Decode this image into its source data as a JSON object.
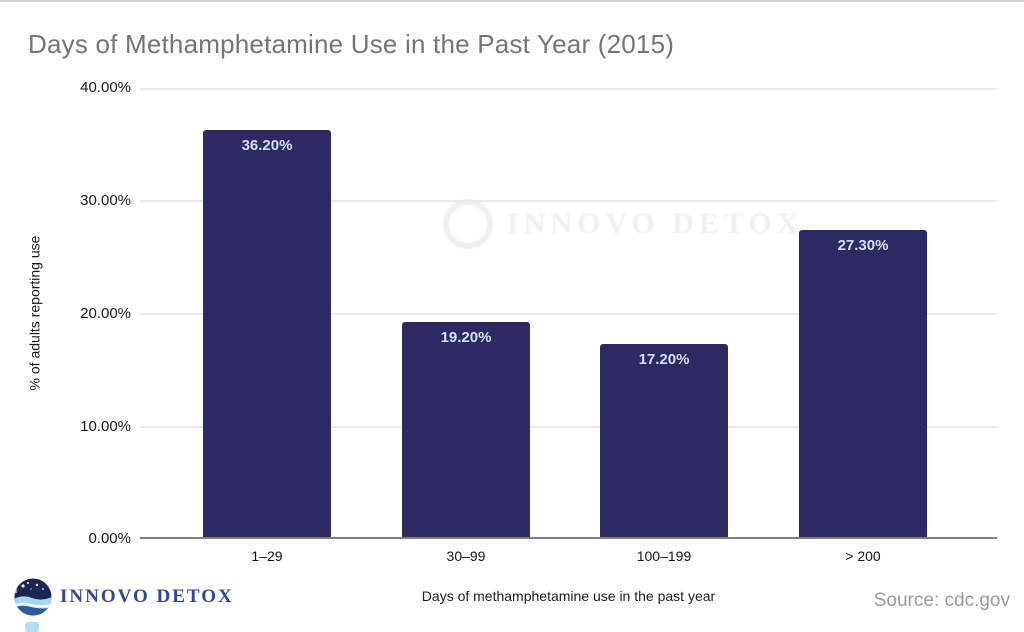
{
  "page": {
    "title": "Days of Methamphetamine Use in the Past Year (2015)",
    "source": "Source: cdc.gov",
    "brand": "INNOVO DETOX",
    "watermark": "INNOVO DETOX"
  },
  "chart_data": {
    "type": "bar",
    "title": "Days of Methamphetamine Use in the Past Year (2015)",
    "categories": [
      "1–29",
      "30–99",
      "100–199",
      "> 200"
    ],
    "values": [
      36.2,
      19.2,
      17.2,
      27.3
    ],
    "value_labels": [
      "36.20%",
      "19.20%",
      "17.20%",
      "27.30%"
    ],
    "xlabel": "Days of methamphetamine use in the past year",
    "ylabel": "% of adults reporting use",
    "ylim": [
      0,
      40
    ],
    "yticks": [
      "40.00%",
      "30.00%",
      "20.00%",
      "10.00%",
      "0.00%"
    ],
    "grid": true,
    "legend": "none",
    "bar_color": "#2d2963",
    "value_label_color": "#cfe2f3",
    "title_color": "#757575",
    "source_label": "Source: cdc.gov"
  }
}
